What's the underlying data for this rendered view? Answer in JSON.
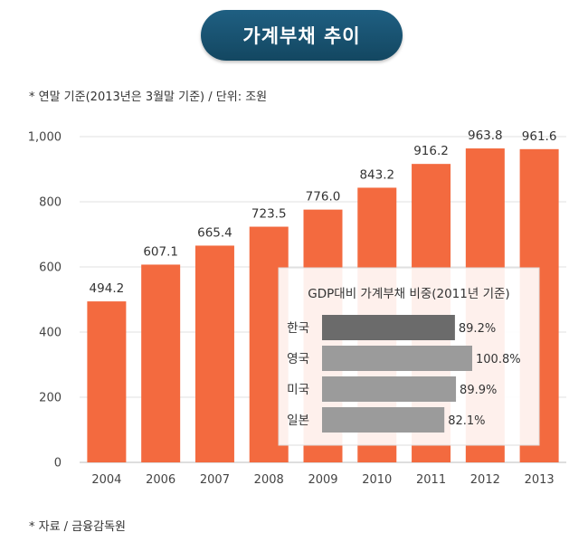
{
  "header": {
    "title": "가계부채 추이"
  },
  "notes": {
    "basis": "* 연말 기준(2013년은 3월말 기준) / 단위: 조원",
    "source": "* 자료 / 금융감독원"
  },
  "colors": {
    "bar": "#f36a3f",
    "inset_first_bar": "#6b6b6b",
    "inset_bar": "#9b9b9b",
    "title_bg": "#1a5677"
  },
  "chart_data": [
    {
      "type": "bar",
      "categories": [
        "2004",
        "2006",
        "2007",
        "2008",
        "2009",
        "2010",
        "2011",
        "2012",
        "2013"
      ],
      "values": [
        494.2,
        607.1,
        665.4,
        723.5,
        776.0,
        843.2,
        916.2,
        963.8,
        961.6
      ],
      "value_labels": [
        "494.2",
        "607.1",
        "665.4",
        "723.5",
        "776.0",
        "843.2",
        "916.2",
        "963.8",
        "961.6"
      ],
      "ylim": [
        0,
        1000
      ],
      "yticks": [
        0,
        200,
        400,
        600,
        800,
        1000
      ],
      "ytick_labels": [
        "0",
        "200",
        "400",
        "600",
        "800",
        "1,000"
      ],
      "grid": true
    },
    {
      "type": "bar",
      "orientation": "horizontal",
      "title": "GDP대비 가계부채 비중(2011년 기준)",
      "categories": [
        "한국",
        "영국",
        "미국",
        "일본"
      ],
      "values": [
        89.2,
        100.8,
        89.9,
        82.1
      ],
      "value_labels": [
        "89.2%",
        "100.8%",
        "89.9%",
        "82.1%"
      ]
    }
  ]
}
